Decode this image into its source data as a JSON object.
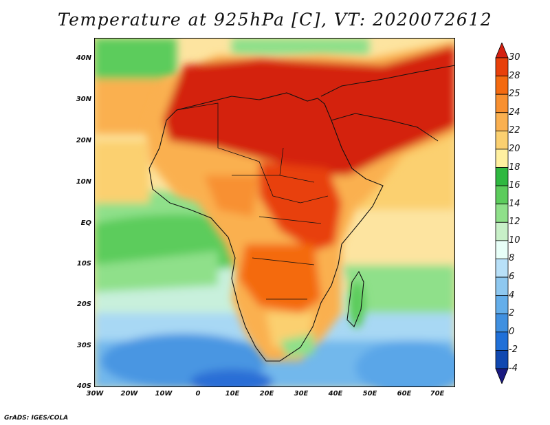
{
  "title": "Temperature at 925hPa [C], VT: 2020072612",
  "map": {
    "lat_labels": [
      "40N",
      "30N",
      "20N",
      "10N",
      "EQ",
      "10S",
      "20S",
      "30S",
      "40S"
    ],
    "lon_labels": [
      "30W",
      "20W",
      "10W",
      "0",
      "10E",
      "20E",
      "30E",
      "40E",
      "50E",
      "60E",
      "70E"
    ]
  },
  "colorbar": {
    "labels": [
      "30",
      "28",
      "25",
      "24",
      "22",
      "20",
      "18",
      "16",
      "14",
      "12",
      "10",
      "8",
      "6",
      "4",
      "2",
      "0",
      "-2",
      "-4"
    ],
    "colors": [
      "#d42010",
      "#e8400a",
      "#f46a10",
      "#f89030",
      "#fab050",
      "#fbd070",
      "#fff0a0",
      "#2fb840",
      "#5ccc5c",
      "#8fe08a",
      "#c8f0c8",
      "#e8fff8",
      "#b8e0f8",
      "#8ec8f0",
      "#64aeea",
      "#4090e0",
      "#2070d8",
      "#1048b0",
      "#1a1a80"
    ]
  },
  "credit": "GrADS: IGES/COLA"
}
